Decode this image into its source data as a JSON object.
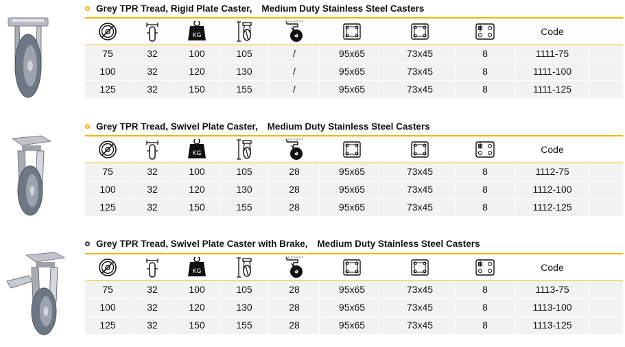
{
  "sections": [
    {
      "title_part1": "Grey TPR Tread, Rigid Plate Caster,",
      "title_part2": "Medium Duty Stainless Steel Casters",
      "header_code": "Code",
      "rows": [
        {
          "c": [
            "75",
            "32",
            "100",
            "105",
            "/",
            "95x65",
            "73x45",
            "8",
            "1111-75"
          ]
        },
        {
          "c": [
            "100",
            "32",
            "120",
            "130",
            "/",
            "95x65",
            "73x45",
            "8",
            "1111-100"
          ]
        },
        {
          "c": [
            "125",
            "32",
            "150",
            "155",
            "/",
            "95x65",
            "73x45",
            "8",
            "1111-125"
          ]
        }
      ]
    },
    {
      "title_part1": "Grey TPR Tread, Swivel Plate Caster,",
      "title_part2": "Medium Duty Stainless Steel Casters",
      "header_code": "Code",
      "rows": [
        {
          "c": [
            "75",
            "32",
            "100",
            "105",
            "28",
            "95x65",
            "73x45",
            "8",
            "1112-75"
          ]
        },
        {
          "c": [
            "100",
            "32",
            "120",
            "130",
            "28",
            "95x65",
            "73x45",
            "8",
            "1112-100"
          ]
        },
        {
          "c": [
            "125",
            "32",
            "150",
            "155",
            "28",
            "95x65",
            "73x45",
            "8",
            "1112-125"
          ]
        }
      ]
    },
    {
      "title_part1": "Grey TPR Tread, Swivel Plate Caster with Brake,",
      "title_part2": "Medium Duty Stainless Steel Casters",
      "header_code": "Code",
      "rows": [
        {
          "c": [
            "75",
            "32",
            "100",
            "105",
            "28",
            "95x65",
            "73x45",
            "8",
            "1113-75"
          ]
        },
        {
          "c": [
            "100",
            "32",
            "120",
            "130",
            "28",
            "95x65",
            "73x45",
            "8",
            "1113-100"
          ]
        },
        {
          "c": [
            "125",
            "32",
            "150",
            "155",
            "28",
            "95x65",
            "73x45",
            "8",
            "1113-125"
          ]
        }
      ]
    }
  ],
  "icons": {
    "kg_label": "KG"
  },
  "colors": {
    "accent": "#f3b400",
    "row_bg": "#f2f2f2"
  }
}
